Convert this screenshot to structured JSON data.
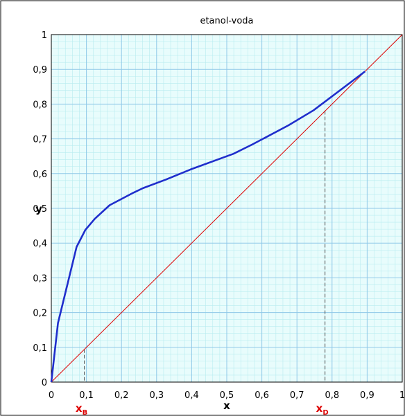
{
  "chart_data": {
    "type": "line",
    "title": "etanol-voda",
    "xlabel": "x",
    "ylabel": "y",
    "xlim": [
      0,
      1
    ],
    "ylim": [
      0,
      1
    ],
    "xticks": [
      "0",
      "0,1",
      "0,2",
      "0,3",
      "0,4",
      "0,5",
      "0,6",
      "0,7",
      "0,8",
      "0,9",
      "1"
    ],
    "yticks": [
      "0",
      "0,1",
      "0,2",
      "0,3",
      "0,4",
      "0,5",
      "0,6",
      "0,7",
      "0,8",
      "0,9",
      "1"
    ],
    "grid": true,
    "series": [
      {
        "color": "#1f2ecc",
        "x": [
          0,
          0.019,
          0.072,
          0.097,
          0.124,
          0.166,
          0.234,
          0.261,
          0.327,
          0.397,
          0.519,
          0.573,
          0.676,
          0.747,
          0.894
        ],
        "y": [
          0,
          0.17,
          0.389,
          0.438,
          0.47,
          0.509,
          0.545,
          0.558,
          0.583,
          0.612,
          0.657,
          0.684,
          0.739,
          0.782,
          0.894
        ]
      },
      {
        "color": "#dd0000",
        "x": [
          0,
          1
        ],
        "y": [
          0,
          1
        ]
      }
    ],
    "annotations": [
      {
        "base": "x",
        "sub": "B",
        "x": 0.094,
        "color": "#dd0000"
      },
      {
        "base": "x",
        "sub": "D",
        "x": 0.78,
        "color": "#dd0000"
      }
    ]
  }
}
